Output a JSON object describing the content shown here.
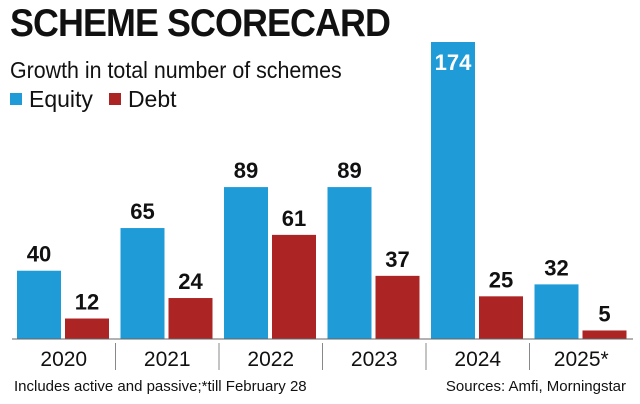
{
  "header": {
    "title": "SCHEME SCORECARD",
    "subtitle": "Growth in total number of schemes"
  },
  "legend": [
    {
      "label": "Equity",
      "color": "#1f9bd8"
    },
    {
      "label": "Debt",
      "color": "#ac2424"
    }
  ],
  "chart_data": {
    "type": "bar",
    "title": "SCHEME SCORECARD",
    "subtitle": "Growth in total number of schemes",
    "categories": [
      "2020",
      "2021",
      "2022",
      "2023",
      "2024",
      "2025*"
    ],
    "series": [
      {
        "name": "Equity",
        "color": "#1f9bd8",
        "values": [
          40,
          65,
          89,
          89,
          174,
          32
        ]
      },
      {
        "name": "Debt",
        "color": "#ac2424",
        "values": [
          12,
          24,
          61,
          37,
          25,
          5
        ]
      }
    ],
    "xlabel": "",
    "ylabel": "",
    "ylim": [
      0,
      174
    ],
    "grid": false,
    "legend_position": "top-left"
  },
  "footer": {
    "note": "Includes active and passive;*till February 28",
    "source": "Sources: Amfi, Morningstar"
  }
}
